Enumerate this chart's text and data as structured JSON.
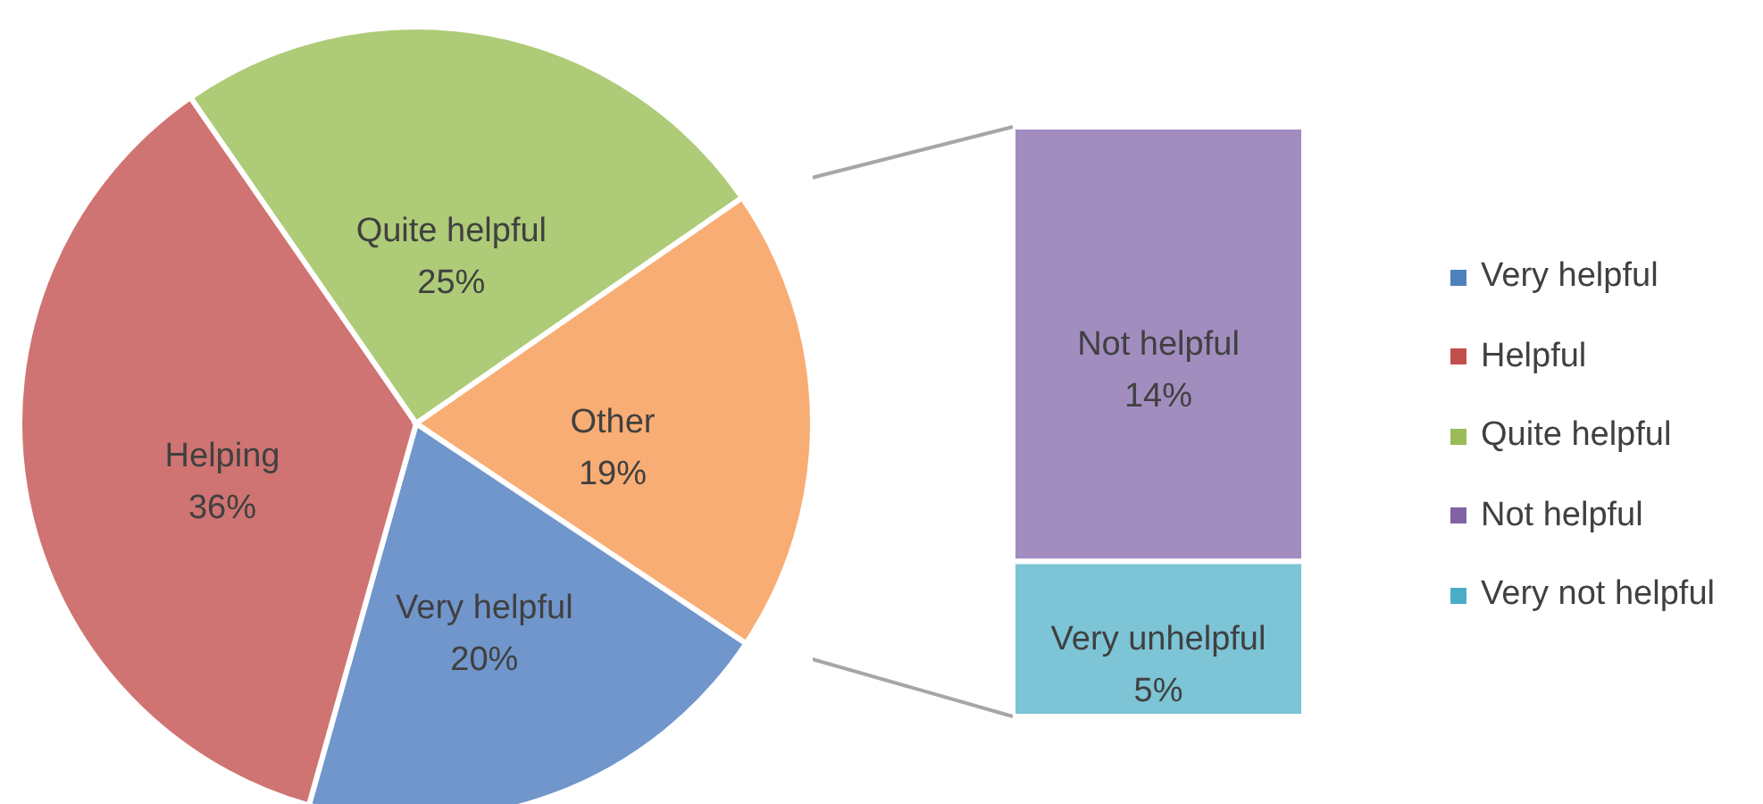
{
  "chart_data": [
    {
      "type": "pie",
      "categories": [
        "Very helpful",
        "Helping",
        "Quite helpful",
        "Other"
      ],
      "values": [
        20,
        36,
        25,
        19
      ],
      "colors": [
        "#7096cc",
        "#cf7472",
        "#aecb78",
        "#f8ad74"
      ],
      "value_labels": [
        "20%",
        "36%",
        "25%",
        "19%"
      ]
    },
    {
      "type": "bar",
      "stacked": true,
      "categories": [
        null
      ],
      "series": [
        {
          "name": "Very unhelpful",
          "color": "#7cc4d6",
          "values": [
            5
          ],
          "value_labels": [
            "5%"
          ]
        },
        {
          "name": "Not helpful",
          "color": "#a28dbf",
          "values": [
            14
          ],
          "value_labels": [
            "14%"
          ]
        }
      ]
    },
    {
      "type": "other",
      "categories": [
        "Very helpful",
        "Helpful",
        "Quite helpful",
        "Not helpful",
        "Very not helpful"
      ],
      "colors": [
        "#4f81bd",
        "#c0504d",
        "#9bbb59",
        "#8064a2",
        "#4bacc6"
      ]
    }
  ]
}
